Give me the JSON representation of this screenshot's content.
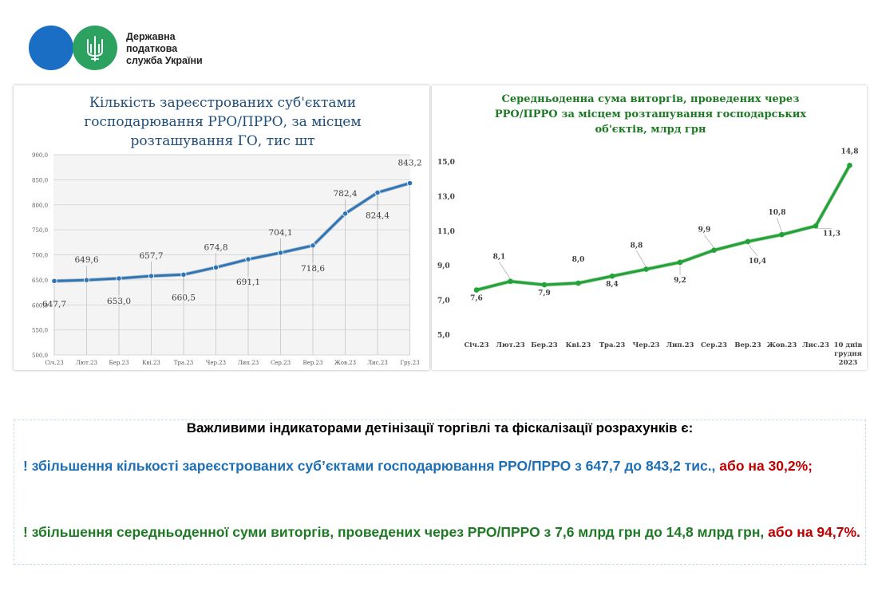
{
  "logo": {
    "line1": "Державна",
    "line2": "податкова",
    "line3": "служба України"
  },
  "chart_data": [
    {
      "type": "line",
      "title": [
        "Кількість зареєстрованих суб'єктами",
        "господарювання РРО/ПРРО, за місцем",
        "розташування ГО, тис шт"
      ],
      "categories": [
        "Січ.23",
        "Лют.23",
        "Бер.23",
        "Кві.23",
        "Тра.23",
        "Чер.23",
        "Лип.23",
        "Сер.23",
        "Вер.23",
        "Жов.23",
        "Лис.23",
        "Гру.23"
      ],
      "values": [
        647.7,
        649.6,
        653.0,
        657.7,
        660.5,
        674.8,
        691.1,
        704.1,
        718.6,
        782.4,
        824.4,
        843.2
      ],
      "labels": [
        "647,7",
        "649,6",
        "653,0",
        "657,7",
        "660,5",
        "674,8",
        "691,1",
        "704,1",
        "718,6",
        "782,4",
        "824,4",
        "843,2"
      ],
      "ylim": [
        500,
        900
      ],
      "yticks": [
        "500,0",
        "550,0",
        "600,0",
        "650,0",
        "700,0",
        "750,0",
        "800,0",
        "850,0",
        "900,0"
      ],
      "color": "#2e75b6",
      "grid": true
    },
    {
      "type": "line",
      "title": [
        "Середньоденна  сума виторгів, проведених через",
        "РРО/ПРРО за місцем розташування господарських",
        "об'єктів, млрд грн"
      ],
      "categories": [
        "Січ.23",
        "Лют.23",
        "Бер.23",
        "Кві.23",
        "Тра.23",
        "Чер.23",
        "Лип.23",
        "Сер.23",
        "Вер.23",
        "Жов.23",
        "Лис.23",
        "10 днів грудня 2023"
      ],
      "values": [
        7.6,
        8.1,
        7.9,
        8.0,
        8.4,
        8.8,
        9.2,
        9.9,
        10.4,
        10.8,
        11.3,
        14.8
      ],
      "labels": [
        "7,6",
        "8,1",
        "7,9",
        "8,0",
        "8,4",
        "8,8",
        "9,2",
        "9,9",
        "10,4",
        "10,8",
        "11,3",
        "14,8"
      ],
      "ylim": [
        5,
        15
      ],
      "yticks": [
        "5,0",
        "7,0",
        "9,0",
        "11,0",
        "13,0",
        "15,0"
      ],
      "color": "#21a336",
      "grid": false
    }
  ],
  "indicators": {
    "title": "Важливими індикаторами детінізації торгівлі та фіскалізації розрахунків є:",
    "item1_main": "! збільшення кількості зареєстрованих суб’єктами господарювання РРО/ПРРО з 647,7 до 843,2 тис.,",
    "item1_accent": "або на 30,2%;",
    "item2_main": "! збільшення середньоденної  суми виторгів, проведених через РРО/ПРРО з 7,6 млрд грн до 14,8 млрд грн,",
    "item2_accent": "або на 94,7%."
  }
}
